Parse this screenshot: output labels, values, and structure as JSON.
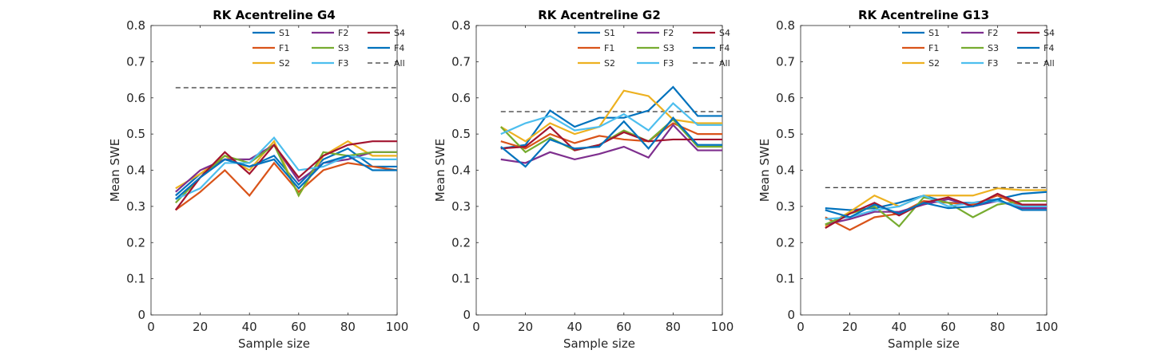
{
  "chart_data": [
    {
      "type": "line",
      "title": "RK Acentreline G4",
      "xlabel": "Sample size",
      "ylabel": "Mean SWE",
      "xlim": [
        0,
        100
      ],
      "ylim": [
        0,
        0.8
      ],
      "xticks": [
        "0",
        "20",
        "40",
        "60",
        "80",
        "100"
      ],
      "yticks": [
        "0",
        "0.1",
        "0.2",
        "0.3",
        "0.4",
        "0.5",
        "0.6",
        "0.7",
        "0.8"
      ],
      "grid": false,
      "legend_position": "top-right",
      "x": [
        10,
        20,
        30,
        40,
        50,
        60,
        70,
        80,
        90,
        100
      ],
      "series": [
        {
          "name": "S1",
          "color": "#0072BD",
          "values": [
            0.33,
            0.39,
            0.43,
            0.41,
            0.44,
            0.36,
            0.43,
            0.46,
            0.41,
            0.41
          ]
        },
        {
          "name": "F1",
          "color": "#D95319",
          "values": [
            0.29,
            0.34,
            0.4,
            0.33,
            0.42,
            0.34,
            0.4,
            0.42,
            0.41,
            0.4
          ]
        },
        {
          "name": "S2",
          "color": "#EDB120",
          "values": [
            0.35,
            0.39,
            0.44,
            0.4,
            0.48,
            0.33,
            0.44,
            0.48,
            0.44,
            0.44
          ]
        },
        {
          "name": "F2",
          "color": "#7E2F8E",
          "values": [
            0.34,
            0.4,
            0.43,
            0.43,
            0.47,
            0.37,
            0.42,
            0.43,
            0.45,
            0.45
          ]
        },
        {
          "name": "S3",
          "color": "#77AC30",
          "values": [
            0.31,
            0.38,
            0.44,
            0.42,
            0.47,
            0.33,
            0.45,
            0.44,
            0.45,
            0.45
          ]
        },
        {
          "name": "F3",
          "color": "#4DBEEE",
          "values": [
            0.32,
            0.35,
            0.42,
            0.42,
            0.49,
            0.4,
            0.41,
            0.44,
            0.43,
            0.43
          ]
        },
        {
          "name": "S4",
          "color": "#A2142F",
          "values": [
            0.29,
            0.38,
            0.45,
            0.39,
            0.47,
            0.38,
            0.44,
            0.47,
            0.48,
            0.48
          ]
        },
        {
          "name": "F4",
          "color": "#0072BD",
          "values": [
            0.32,
            0.38,
            0.43,
            0.41,
            0.43,
            0.35,
            0.42,
            0.44,
            0.4,
            0.4
          ]
        }
      ],
      "reference": {
        "name": "All",
        "value": 0.628,
        "color": "#000000",
        "style": "dashed",
        "x": [
          10,
          100
        ]
      }
    },
    {
      "type": "line",
      "title": "RK Acentreline G2",
      "xlabel": "Sample size",
      "ylabel": "Mean SWE",
      "xlim": [
        0,
        100
      ],
      "ylim": [
        0,
        0.8
      ],
      "xticks": [
        "0",
        "20",
        "40",
        "60",
        "80",
        "100"
      ],
      "yticks": [
        "0",
        "0.1",
        "0.2",
        "0.3",
        "0.4",
        "0.5",
        "0.6",
        "0.7",
        "0.8"
      ],
      "grid": false,
      "legend_position": "top-right",
      "x": [
        10,
        20,
        30,
        40,
        50,
        60,
        70,
        80,
        90,
        100
      ],
      "series": [
        {
          "name": "S1",
          "color": "#0072BD",
          "values": [
            0.46,
            0.47,
            0.565,
            0.52,
            0.545,
            0.545,
            0.565,
            0.63,
            0.55,
            0.55
          ]
        },
        {
          "name": "F1",
          "color": "#D95319",
          "values": [
            0.48,
            0.46,
            0.5,
            0.475,
            0.495,
            0.485,
            0.48,
            0.53,
            0.5,
            0.5
          ]
        },
        {
          "name": "S2",
          "color": "#EDB120",
          "values": [
            0.52,
            0.48,
            0.53,
            0.5,
            0.52,
            0.62,
            0.605,
            0.54,
            0.53,
            0.53
          ]
        },
        {
          "name": "F2",
          "color": "#7E2F8E",
          "values": [
            0.43,
            0.42,
            0.45,
            0.43,
            0.445,
            0.465,
            0.435,
            0.525,
            0.455,
            0.455
          ]
        },
        {
          "name": "S3",
          "color": "#77AC30",
          "values": [
            0.52,
            0.45,
            0.49,
            0.455,
            0.47,
            0.51,
            0.48,
            0.54,
            0.465,
            0.465
          ]
        },
        {
          "name": "F3",
          "color": "#4DBEEE",
          "values": [
            0.5,
            0.53,
            0.55,
            0.51,
            0.52,
            0.555,
            0.51,
            0.585,
            0.525,
            0.525
          ]
        },
        {
          "name": "S4",
          "color": "#A2142F",
          "values": [
            0.46,
            0.465,
            0.52,
            0.455,
            0.47,
            0.505,
            0.48,
            0.485,
            0.485,
            0.485
          ]
        },
        {
          "name": "F4",
          "color": "#0072BD",
          "values": [
            0.465,
            0.41,
            0.485,
            0.46,
            0.465,
            0.535,
            0.46,
            0.545,
            0.47,
            0.47
          ]
        }
      ],
      "reference": {
        "name": "All",
        "value": 0.562,
        "color": "#000000",
        "style": "dashed",
        "x": [
          10,
          100
        ]
      }
    },
    {
      "type": "line",
      "title": "RK Acentreline G13",
      "xlabel": "Sample size",
      "ylabel": "Mean SWE",
      "xlim": [
        0,
        100
      ],
      "ylim": [
        0,
        0.8
      ],
      "xticks": [
        "0",
        "20",
        "40",
        "60",
        "80",
        "100"
      ],
      "yticks": [
        "0",
        "0.1",
        "0.2",
        "0.3",
        "0.4",
        "0.5",
        "0.6",
        "0.7",
        "0.8"
      ],
      "grid": false,
      "legend_position": "top-right",
      "x": [
        10,
        20,
        30,
        40,
        50,
        60,
        70,
        80,
        90,
        100
      ],
      "series": [
        {
          "name": "S1",
          "color": "#0072BD",
          "values": [
            0.295,
            0.29,
            0.295,
            0.31,
            0.33,
            0.31,
            0.31,
            0.32,
            0.335,
            0.34
          ]
        },
        {
          "name": "F1",
          "color": "#D95319",
          "values": [
            0.27,
            0.235,
            0.27,
            0.28,
            0.315,
            0.31,
            0.305,
            0.33,
            0.3,
            0.3
          ]
        },
        {
          "name": "S2",
          "color": "#EDB120",
          "values": [
            0.245,
            0.285,
            0.33,
            0.3,
            0.33,
            0.33,
            0.33,
            0.35,
            0.345,
            0.345
          ]
        },
        {
          "name": "F2",
          "color": "#7E2F8E",
          "values": [
            0.25,
            0.265,
            0.285,
            0.285,
            0.305,
            0.32,
            0.3,
            0.315,
            0.295,
            0.295
          ]
        },
        {
          "name": "S3",
          "color": "#77AC30",
          "values": [
            0.25,
            0.28,
            0.3,
            0.245,
            0.325,
            0.31,
            0.27,
            0.305,
            0.315,
            0.315
          ]
        },
        {
          "name": "F3",
          "color": "#4DBEEE",
          "values": [
            0.265,
            0.27,
            0.29,
            0.3,
            0.33,
            0.3,
            0.31,
            0.315,
            0.3,
            0.3
          ]
        },
        {
          "name": "S4",
          "color": "#A2142F",
          "values": [
            0.24,
            0.28,
            0.31,
            0.275,
            0.31,
            0.325,
            0.3,
            0.335,
            0.305,
            0.305
          ]
        },
        {
          "name": "F4",
          "color": "#0072BD",
          "values": [
            0.29,
            0.27,
            0.305,
            0.28,
            0.31,
            0.295,
            0.3,
            0.32,
            0.29,
            0.29
          ]
        }
      ],
      "reference": {
        "name": "All",
        "value": 0.352,
        "color": "#000000",
        "style": "dashed",
        "x": [
          10,
          100
        ]
      }
    }
  ]
}
